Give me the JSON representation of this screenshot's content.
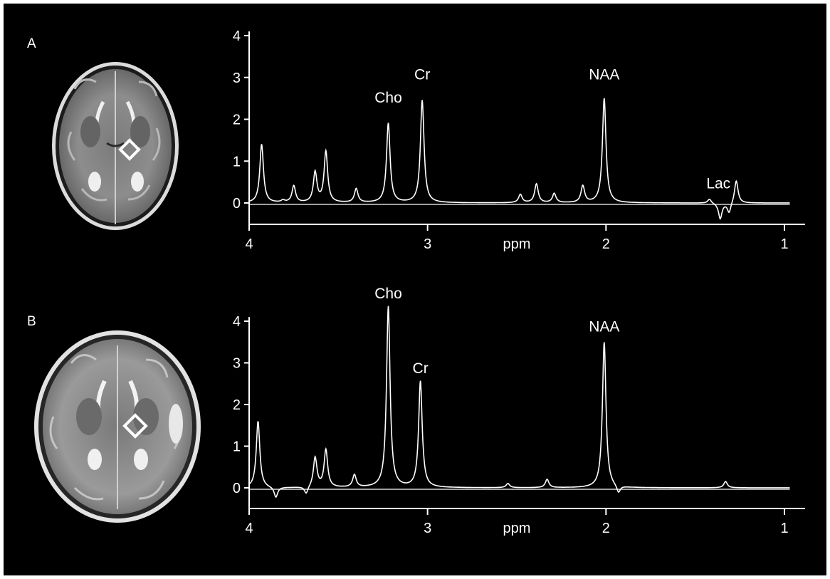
{
  "panels": [
    {
      "label": "A"
    },
    {
      "label": "B"
    }
  ],
  "colors": {
    "background": "#000000",
    "foreground": "#ffffff"
  },
  "chart_data": [
    {
      "type": "line",
      "panel": "A",
      "xlabel": "ppm",
      "ylabel": "",
      "xlim": [
        4,
        0.95
      ],
      "ylim": [
        -0.5,
        4.1
      ],
      "x_reversed": true,
      "xticks": [
        4,
        3,
        2,
        1
      ],
      "yticks": [
        0,
        1,
        2,
        3,
        4
      ],
      "baseline": 0,
      "peaks": [
        {
          "ppm": 3.93,
          "height": 1.4
        },
        {
          "ppm": 3.81,
          "height": 0.05
        },
        {
          "ppm": 3.75,
          "height": 0.4
        },
        {
          "ppm": 3.63,
          "height": 0.72
        },
        {
          "ppm": 3.57,
          "height": 1.22
        },
        {
          "ppm": 3.4,
          "height": 0.33
        },
        {
          "ppm": 3.22,
          "height": 1.9
        },
        {
          "ppm": 3.03,
          "height": 2.45
        },
        {
          "ppm": 2.48,
          "height": 0.2
        },
        {
          "ppm": 2.39,
          "height": 0.45
        },
        {
          "ppm": 2.29,
          "height": 0.22
        },
        {
          "ppm": 2.13,
          "height": 0.4
        },
        {
          "ppm": 2.01,
          "height": 2.5
        },
        {
          "ppm": 1.42,
          "height": 0.1
        },
        {
          "ppm": 1.36,
          "height": -0.38
        },
        {
          "ppm": 1.31,
          "height": -0.25
        },
        {
          "ppm": 1.27,
          "height": 0.55
        }
      ],
      "annotations": [
        {
          "text": "Cho",
          "ppm": 3.22,
          "y": 2.4
        },
        {
          "text": "Cr",
          "ppm": 3.03,
          "y": 2.95
        },
        {
          "text": "NAA",
          "ppm": 2.01,
          "y": 2.95
        },
        {
          "text": "Lac",
          "ppm": 1.37,
          "y": 0.35
        }
      ]
    },
    {
      "type": "line",
      "panel": "B",
      "xlabel": "ppm",
      "ylabel": "",
      "xlim": [
        4,
        0.95
      ],
      "ylim": [
        -0.5,
        4.5
      ],
      "x_reversed": true,
      "xticks": [
        4,
        3,
        2,
        1
      ],
      "yticks": [
        0,
        1,
        2,
        3,
        4
      ],
      "baseline": 0,
      "peaks": [
        {
          "ppm": 3.95,
          "height": 1.6
        },
        {
          "ppm": 3.85,
          "height": -0.25
        },
        {
          "ppm": 3.68,
          "height": -0.18
        },
        {
          "ppm": 3.63,
          "height": 0.72
        },
        {
          "ppm": 3.57,
          "height": 0.9
        },
        {
          "ppm": 3.41,
          "height": 0.3
        },
        {
          "ppm": 3.22,
          "height": 4.35
        },
        {
          "ppm": 3.04,
          "height": 2.55
        },
        {
          "ppm": 2.55,
          "height": 0.1
        },
        {
          "ppm": 2.33,
          "height": 0.2
        },
        {
          "ppm": 2.01,
          "height": 3.5
        },
        {
          "ppm": 1.93,
          "height": -0.18
        },
        {
          "ppm": 1.33,
          "height": 0.15
        }
      ],
      "annotations": [
        {
          "text": "Cho",
          "ppm": 3.22,
          "y": 4.55
        },
        {
          "text": "Cr",
          "ppm": 3.04,
          "y": 2.75
        },
        {
          "text": "NAA",
          "ppm": 2.01,
          "y": 3.75
        }
      ]
    }
  ]
}
